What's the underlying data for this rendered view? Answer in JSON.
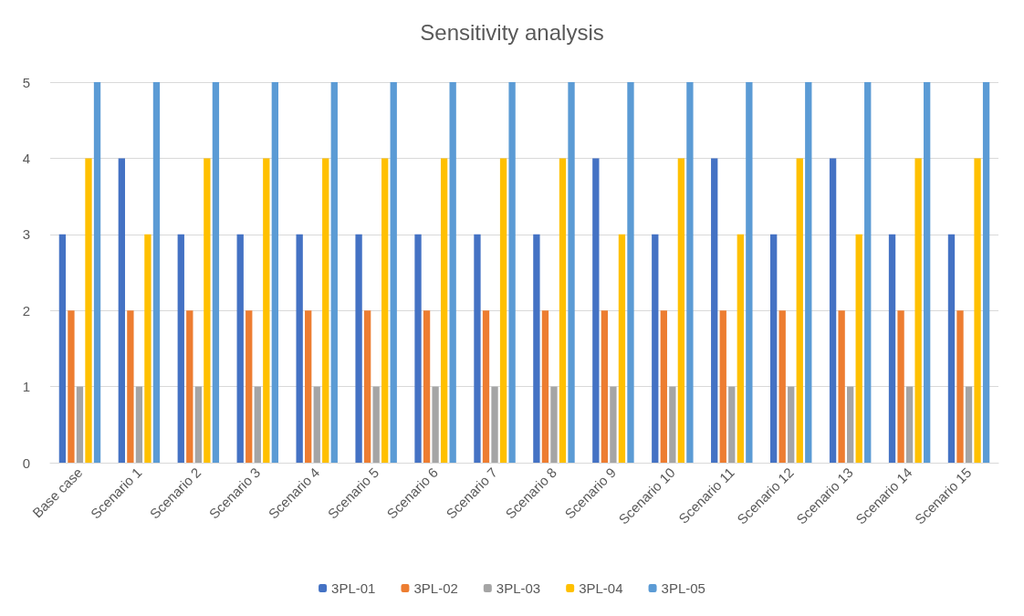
{
  "chart_data": {
    "type": "bar",
    "title": "Sensitivity analysis",
    "categories": [
      "Base case",
      "Scenario 1",
      "Scenario 2",
      "Scenario 3",
      "Scenario 4",
      "Scenario 5",
      "Scenario 6",
      "Scenario 7",
      "Scenario 8",
      "Scenario 9",
      "Scenario 10",
      "Scenario 11",
      "Scenario 12",
      "Scenario 13",
      "Scenario 14",
      "Scenario 15"
    ],
    "series": [
      {
        "name": "3PL-01",
        "color": "#4472c4",
        "values": [
          3,
          4,
          3,
          3,
          3,
          3,
          3,
          3,
          3,
          4,
          3,
          4,
          3,
          4,
          3,
          3
        ]
      },
      {
        "name": "3PL-02",
        "color": "#ed7d31",
        "values": [
          2,
          2,
          2,
          2,
          2,
          2,
          2,
          2,
          2,
          2,
          2,
          2,
          2,
          2,
          2,
          2
        ]
      },
      {
        "name": "3PL-03",
        "color": "#a5a5a5",
        "values": [
          1,
          1,
          1,
          1,
          1,
          1,
          1,
          1,
          1,
          1,
          1,
          1,
          1,
          1,
          1,
          1
        ]
      },
      {
        "name": "3PL-04",
        "color": "#ffc000",
        "values": [
          4,
          3,
          4,
          4,
          4,
          4,
          4,
          4,
          4,
          3,
          4,
          3,
          4,
          3,
          4,
          4
        ]
      },
      {
        "name": "3PL-05",
        "color": "#5b9bd5",
        "values": [
          5,
          5,
          5,
          5,
          5,
          5,
          5,
          5,
          5,
          5,
          5,
          5,
          5,
          5,
          5,
          5
        ]
      }
    ],
    "ylim": [
      0,
      5
    ],
    "yticks": [
      0,
      1,
      2,
      3,
      4,
      5
    ],
    "grid": "y",
    "legend": "bottom"
  }
}
